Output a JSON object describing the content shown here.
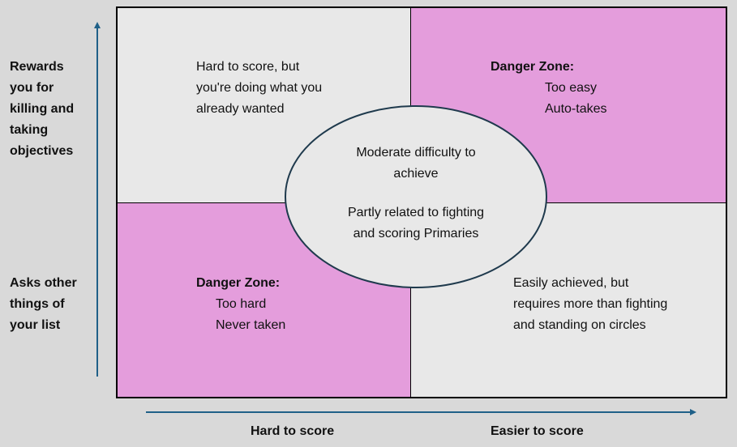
{
  "colors": {
    "background": "#d9d9d9",
    "neutral": "#e8e8e8",
    "danger": "#e49ddc",
    "arrow": "#1f6088",
    "ellipse_stroke": "#1f3a4d"
  },
  "y_axis": {
    "top_label": [
      "Rewards",
      "you for",
      "killing and",
      "taking",
      "objectives"
    ],
    "bottom_label": [
      "Asks other",
      "things of",
      "your list"
    ]
  },
  "x_axis": {
    "left_label": "Hard to score",
    "right_label": "Easier to score"
  },
  "quadrants": {
    "top_left": [
      "Hard to score, but",
      "you're doing what you",
      "already wanted"
    ],
    "top_right": {
      "title": "Danger Zone:",
      "lines": [
        "Too easy",
        "Auto-takes"
      ]
    },
    "bottom_left": {
      "title": "Danger Zone:",
      "lines": [
        "Too hard",
        "Never taken"
      ]
    },
    "bottom_right": [
      "Easily achieved, but",
      "requires more than fighting",
      "and standing on circles"
    ]
  },
  "center": {
    "lines1": [
      "Moderate difficulty to",
      "achieve"
    ],
    "lines2": [
      "Partly related to fighting",
      "and scoring Primaries"
    ]
  }
}
